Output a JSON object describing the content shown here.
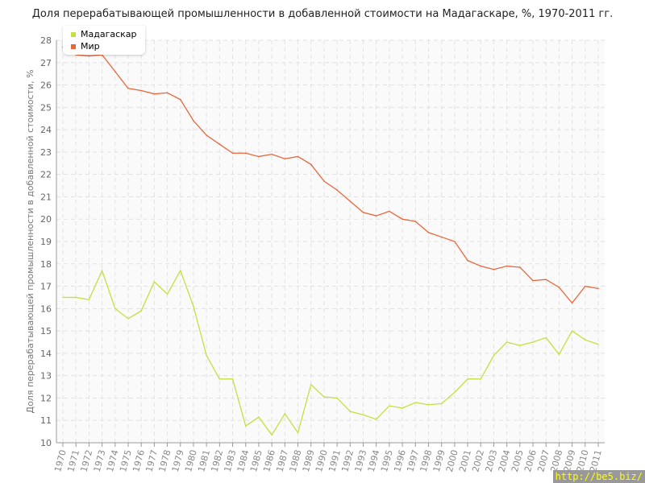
{
  "chart_data": {
    "type": "line",
    "title": "Доля перерабатывающей промышленности в добавленной стоимости на Мадагаскаре, %, 1970-2011 гг.",
    "ylabel": "Доля перерабатывающей промышленности в добавленной стоимости, %",
    "xlabel": "",
    "ylim": [
      10,
      28
    ],
    "yticks": [
      10,
      11,
      12,
      13,
      14,
      15,
      16,
      17,
      18,
      19,
      20,
      21,
      22,
      23,
      24,
      25,
      26,
      27,
      28
    ],
    "x": [
      1970,
      1971,
      1972,
      1973,
      1974,
      1975,
      1976,
      1977,
      1978,
      1979,
      1980,
      1981,
      1982,
      1983,
      1984,
      1985,
      1986,
      1987,
      1988,
      1989,
      1990,
      1991,
      1992,
      1993,
      1994,
      1995,
      1996,
      1997,
      1998,
      1999,
      2000,
      2001,
      2002,
      2003,
      2004,
      2005,
      2006,
      2007,
      2008,
      2009,
      2010,
      2011
    ],
    "grid": true,
    "legend": "top-left",
    "series": [
      {
        "name": "Мадагаскар",
        "color": "#c5e040",
        "values": [
          16.5,
          16.5,
          16.4,
          17.7,
          16.0,
          15.55,
          15.9,
          17.2,
          16.65,
          17.7,
          16.1,
          13.9,
          12.85,
          12.85,
          10.75,
          11.15,
          10.35,
          11.3,
          10.45,
          12.6,
          12.05,
          12.0,
          11.4,
          11.25,
          11.05,
          11.65,
          11.55,
          11.8,
          11.7,
          11.75,
          12.25,
          12.85,
          12.85,
          13.9,
          14.5,
          14.35,
          14.5,
          14.7,
          13.95,
          15.0,
          14.6,
          14.4
        ]
      },
      {
        "name": "Мир",
        "color": "#e8673a",
        "values": [
          27.7,
          27.35,
          27.3,
          27.35,
          26.6,
          25.85,
          25.75,
          25.6,
          25.65,
          25.35,
          24.4,
          23.75,
          23.35,
          22.95,
          22.95,
          22.8,
          22.9,
          22.7,
          22.8,
          22.45,
          21.7,
          21.3,
          20.8,
          20.3,
          20.15,
          20.35,
          20.0,
          19.9,
          19.4,
          19.2,
          19.0,
          18.15,
          17.9,
          17.75,
          17.9,
          17.85,
          17.25,
          17.3,
          16.95,
          16.25,
          17.0,
          16.9
        ]
      }
    ]
  },
  "watermark": "http://be5.biz/"
}
